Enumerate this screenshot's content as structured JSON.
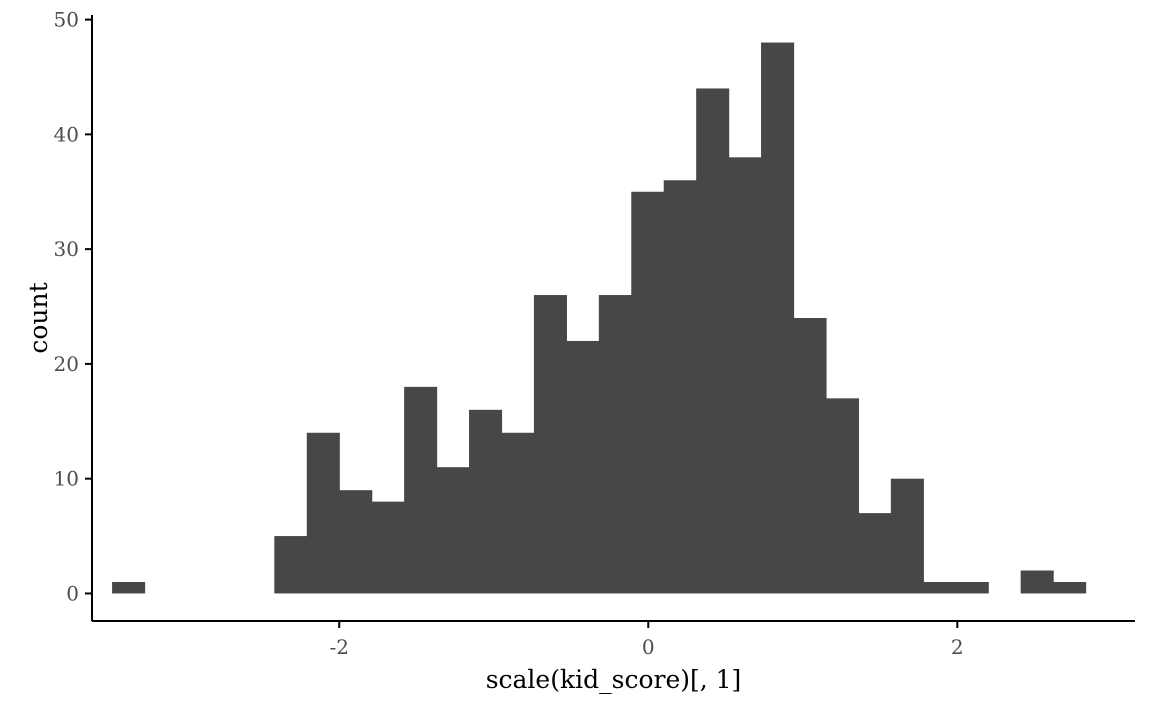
{
  "chart_data": {
    "type": "bar",
    "subtype": "histogram",
    "xlabel": "scale(kid_score)[, 1]",
    "ylabel": "count",
    "xlim": [
      -3.6,
      3.15
    ],
    "ylim": [
      -2.4,
      50.4
    ],
    "xticks": [
      -2,
      0,
      2
    ],
    "xtick_labels": [
      "-2",
      "0",
      "2"
    ],
    "yticks": [
      0,
      10,
      20,
      30,
      40,
      50
    ],
    "ytick_labels": [
      "0",
      "10",
      "20",
      "30",
      "40",
      "50"
    ],
    "bin_width": 0.21,
    "bins_start": [
      -3.47,
      -2.42,
      -2.21,
      -2.0,
      -1.79,
      -1.58,
      -1.37,
      -1.16,
      -0.95,
      -0.74,
      -0.53,
      -0.32,
      -0.11,
      0.1,
      0.31,
      0.52,
      0.73,
      0.94,
      1.15,
      1.36,
      1.57,
      1.78,
      1.99,
      2.41,
      2.62
    ],
    "values": [
      1,
      5,
      14,
      9,
      8,
      18,
      11,
      16,
      14,
      26,
      22,
      26,
      35,
      36,
      44,
      38,
      48,
      24,
      17,
      7,
      10,
      1,
      1,
      2,
      1
    ],
    "bar_color": "#474747",
    "grid": false,
    "legend": "none"
  }
}
